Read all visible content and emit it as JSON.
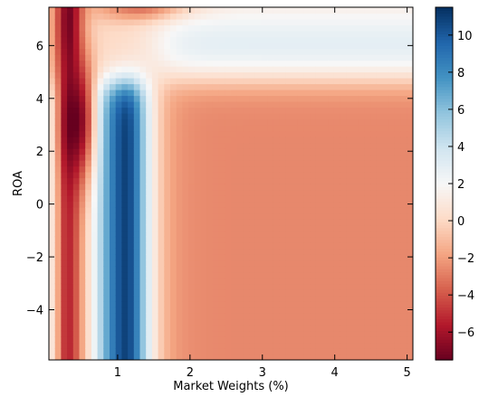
{
  "chart_data": {
    "type": "heatmap",
    "title": "",
    "xlabel": "Market Weights (%)",
    "ylabel": "ROA",
    "xlim": [
      0.05,
      5.08
    ],
    "ylim": [
      -5.9,
      7.45
    ],
    "x_ticks": [
      "1",
      "2",
      "3",
      "4",
      "5"
    ],
    "y_ticks": [
      "−4",
      "−2",
      "0",
      "2",
      "4",
      "6"
    ],
    "colorbar": {
      "colormap": "RdBu",
      "range": [
        -7.5,
        11.5
      ],
      "ticks": [
        "−6",
        "−4",
        "−2",
        "0",
        "2",
        "4",
        "6",
        "8",
        "10"
      ]
    },
    "grid": false,
    "features": [
      {
        "description_x": 0.3,
        "y_range": [
          -5.9,
          7.45
        ],
        "value": -7,
        "note": "red ridge peaking near ROA 7 and ROA 3"
      },
      {
        "description_x": 1.12,
        "y_range": [
          -5.9,
          4.2
        ],
        "value": 11,
        "note": "blue ridge"
      },
      {
        "description_x": 1.4,
        "y_range": [
          6.0,
          7.45
        ],
        "value": -3,
        "note": "red band at top"
      },
      {
        "description_x": 3.5,
        "y_range": [
          5.0,
          7.0
        ],
        "value": 3,
        "note": "light blue plateau"
      },
      {
        "description_x": 3.5,
        "y_range": [
          -5.9,
          4.0
        ],
        "value": -2.5,
        "note": "light red plateau"
      }
    ]
  }
}
